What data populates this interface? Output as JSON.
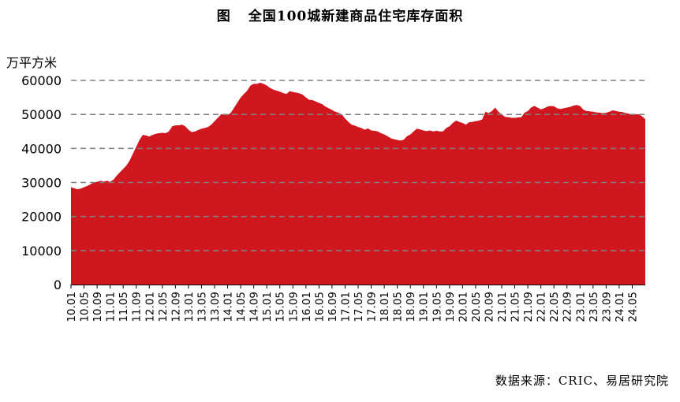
{
  "figure_label": "图",
  "source": "数据来源：CRIC、易居研究院",
  "colors": {
    "area": "#d0161f",
    "grid": "#808080",
    "axis": "#000000"
  },
  "chart_data": {
    "type": "area",
    "title": "全国100城新建商品住宅库存面积",
    "ylabel": "万平方米",
    "xlabel": "",
    "ylim": [
      0,
      60000
    ],
    "yticks": [
      0,
      10000,
      20000,
      30000,
      40000,
      50000,
      60000
    ],
    "grid": "horizontal dashed",
    "x_start": "2010-01",
    "x_tick_labels": [
      "10.01",
      "10.05",
      "10.09",
      "11.01",
      "11.05",
      "11.09",
      "12.01",
      "12.05",
      "12.09",
      "13.01",
      "13.05",
      "13.09",
      "14.01",
      "14.05",
      "14.09",
      "15.01",
      "15.05",
      "15.09",
      "16.01",
      "16.05",
      "16.09",
      "17.01",
      "17.05",
      "17.09",
      "18.01",
      "18.05",
      "18.09",
      "19.01",
      "19.05",
      "19.09",
      "20.01",
      "20.05",
      "20.09",
      "21.01",
      "21.05",
      "21.09",
      "22.01",
      "22.05",
      "22.09",
      "23.01",
      "23.05",
      "23.09",
      "24.01",
      "24.05"
    ],
    "values": [
      28600,
      28300,
      28000,
      28200,
      28600,
      29000,
      29500,
      30000,
      30200,
      30500,
      30300,
      30500,
      30200,
      30800,
      32000,
      33000,
      34000,
      35000,
      36500,
      38500,
      40500,
      42500,
      44000,
      43800,
      43500,
      44000,
      44300,
      44500,
      44600,
      44500,
      45000,
      46500,
      46800,
      46800,
      47000,
      46500,
      45500,
      44800,
      45000,
      45400,
      45800,
      46000,
      46300,
      47000,
      48000,
      49000,
      50000,
      50200,
      49800,
      50500,
      52000,
      53500,
      55000,
      56000,
      57000,
      58500,
      59000,
      59000,
      59300,
      59000,
      58500,
      57800,
      57300,
      57000,
      56700,
      56300,
      56000,
      56800,
      56600,
      56400,
      56200,
      55800,
      55000,
      54300,
      54200,
      53800,
      53400,
      53000,
      52300,
      51800,
      51300,
      50800,
      50500,
      50000,
      48800,
      47800,
      47000,
      46700,
      46300,
      46000,
      45500,
      45900,
      45300,
      45200,
      45000,
      44500,
      44100,
      43600,
      43000,
      42700,
      42500,
      42300,
      42600,
      43600,
      44100,
      45000,
      45800,
      45600,
      45300,
      45100,
      45300,
      45000,
      45200,
      45000,
      45000,
      46000,
      46500,
      47500,
      48200,
      47800,
      47500,
      47000,
      47700,
      47800,
      48000,
      48200,
      48500,
      50800,
      50400,
      51000,
      52000,
      50800,
      50000,
      49300,
      49200,
      49000,
      49000,
      49100,
      49200,
      50500,
      51000,
      52000,
      52500,
      52000,
      51500,
      51800,
      52300,
      52500,
      52400,
      51800,
      51600,
      51800,
      52000,
      52200,
      52600,
      52800,
      52500,
      51400,
      51000,
      50900,
      50800,
      50600,
      50500,
      50400,
      50500,
      50800,
      51200,
      51000,
      50800,
      50700,
      50400,
      50200,
      50100,
      50100,
      50000,
      49500,
      48600
    ]
  }
}
